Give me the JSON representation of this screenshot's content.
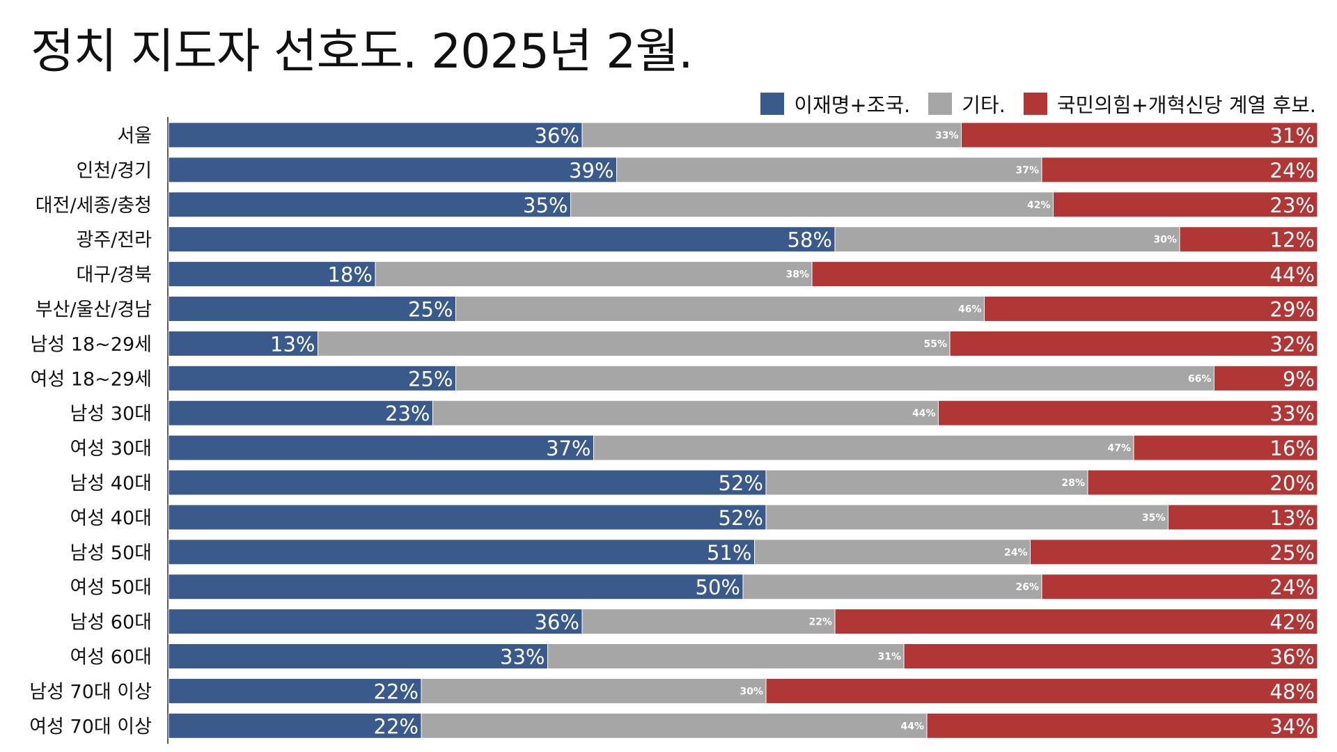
{
  "chart_data": {
    "type": "bar",
    "stacked": true,
    "orientation": "horizontal",
    "title": "정치 지도자 선호도. 2025년 2월.",
    "legend_position": "top-right",
    "categories": [
      "서울",
      "인천/경기",
      "대전/세종/충청",
      "광주/전라",
      "대구/경북",
      "부산/울산/경남",
      "남성 18~29세",
      "여성 18~29세",
      "남성 30대",
      "여성 30대",
      "남성 40대",
      "여성 40대",
      "남성 50대",
      "여성 50대",
      "남성 60대",
      "여성 60대",
      "남성 70대 이상",
      "여성 70대 이상"
    ],
    "series": [
      {
        "name": "이재명+조국.",
        "color": "#3a5a8c",
        "values": [
          36,
          39,
          35,
          58,
          18,
          25,
          13,
          25,
          23,
          37,
          52,
          52,
          51,
          50,
          36,
          33,
          22,
          22
        ]
      },
      {
        "name": "기타.",
        "color": "#a6a6a6",
        "values": [
          33,
          37,
          42,
          30,
          38,
          46,
          55,
          66,
          44,
          47,
          28,
          35,
          24,
          26,
          22,
          31,
          30,
          44
        ]
      },
      {
        "name": "국민의힘+개혁신당 계열 후보.",
        "color": "#b03735",
        "values": [
          31,
          24,
          23,
          12,
          44,
          29,
          32,
          9,
          33,
          16,
          20,
          13,
          25,
          24,
          42,
          36,
          48,
          34
        ]
      }
    ],
    "value_suffix": "%"
  }
}
